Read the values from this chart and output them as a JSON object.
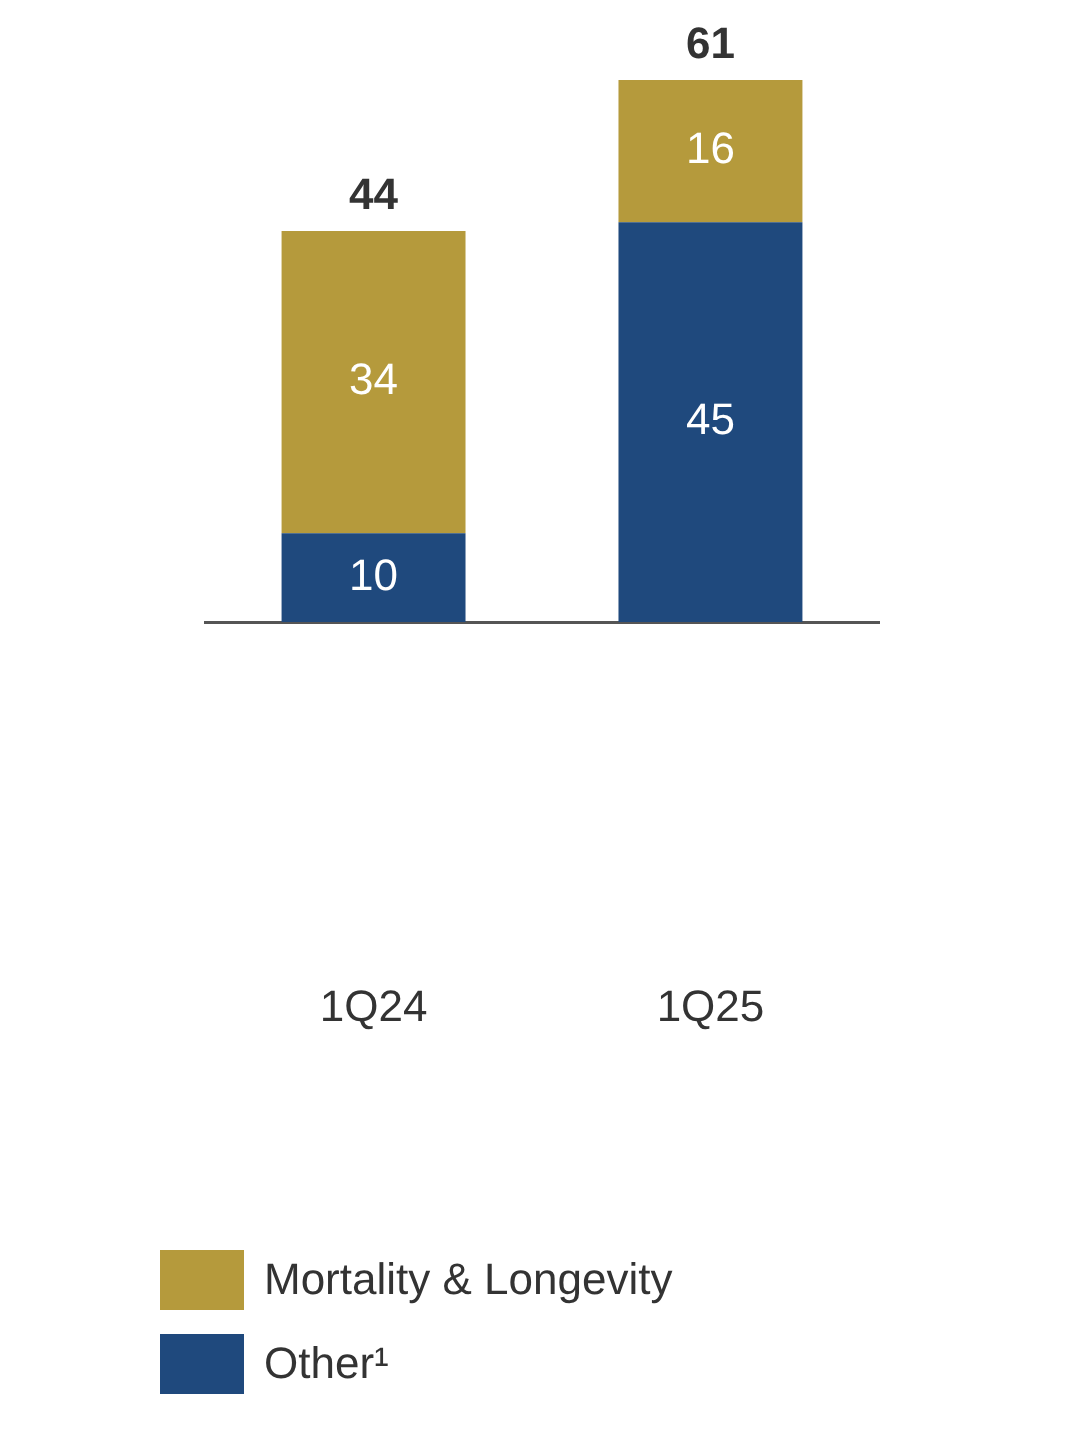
{
  "chart_data": {
    "type": "bar",
    "stacked": true,
    "categories": [
      "1Q24",
      "1Q25"
    ],
    "series": [
      {
        "name": "Other¹",
        "color": "#1f497d",
        "values": [
          10,
          45
        ]
      },
      {
        "name": "Mortality & Longevity",
        "color": "#b59a3c",
        "values": [
          34,
          16
        ]
      }
    ],
    "data_labels": true,
    "totals": [
      "44",
      "61"
    ],
    "legend": "bottom",
    "grid": false
  }
}
